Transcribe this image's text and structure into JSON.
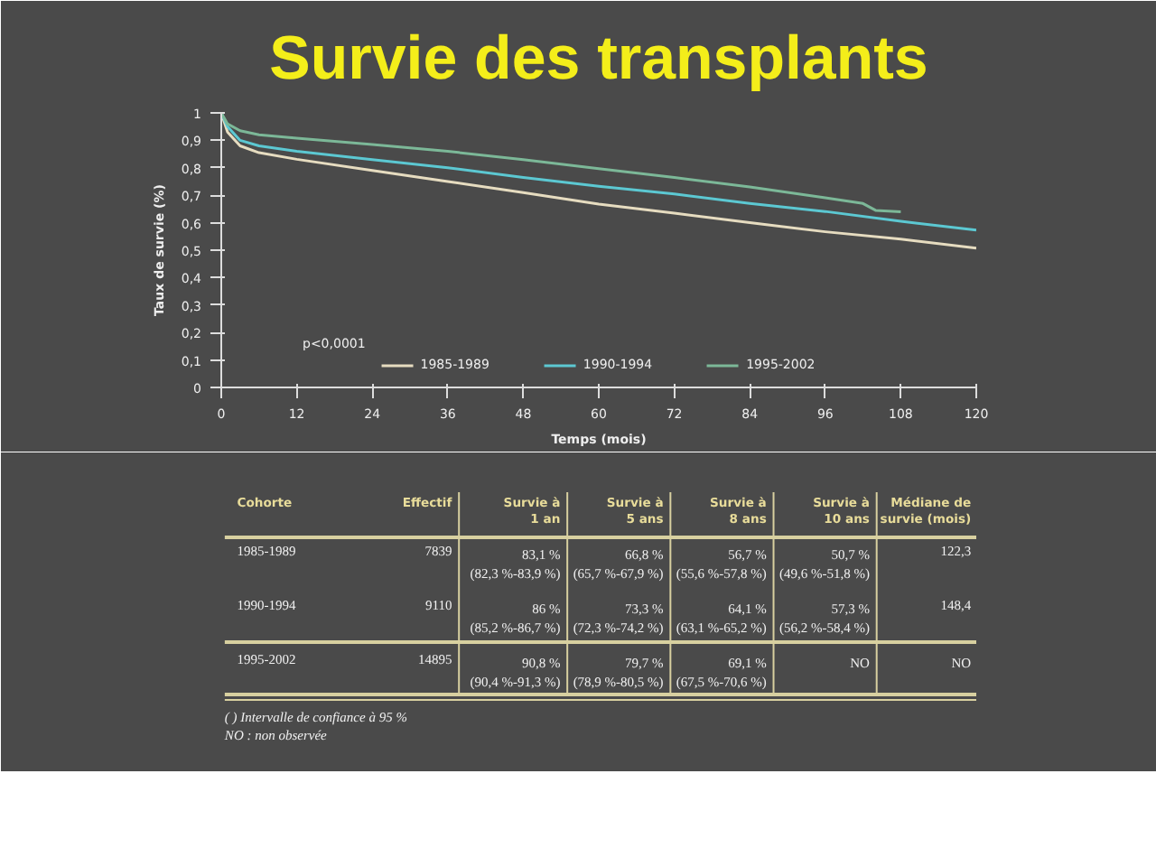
{
  "chart_data": [
    {
      "type": "line",
      "title": "Survie des transplants",
      "xlabel": "Temps (mois)",
      "ylabel": "Taux de survie (%)",
      "xlim": [
        0,
        120
      ],
      "xticks": [
        0,
        12,
        24,
        36,
        48,
        60,
        72,
        84,
        96,
        108,
        120
      ],
      "ylim": [
        0,
        1
      ],
      "yticks": [
        0,
        {
          "value": 0.1,
          "label": "0,1"
        },
        {
          "value": 0.2,
          "label": "0,2"
        },
        {
          "value": 0.3,
          "label": "0,3"
        },
        {
          "value": 0.4,
          "label": "0,4"
        },
        {
          "value": 0.5,
          "label": "0,5"
        },
        {
          "value": 0.6,
          "label": "0,6"
        },
        {
          "value": 0.7,
          "label": "0,7"
        },
        {
          "value": 0.8,
          "label": "0,8"
        },
        {
          "value": 0.9,
          "label": "0,9"
        },
        1
      ],
      "grid": false,
      "legend": "bottom",
      "marker": "none",
      "line_style": "solid",
      "annotations": [
        "p<0,0001"
      ],
      "series": [
        {
          "name": "1985-1989",
          "color": "#e6dcc0",
          "x": [
            0,
            1,
            3,
            6,
            12,
            24,
            36,
            48,
            60,
            72,
            84,
            96,
            108,
            120
          ],
          "values": [
            1,
            0.93,
            0.88,
            0.855,
            0.831,
            0.79,
            0.75,
            0.71,
            0.668,
            0.635,
            0.6,
            0.567,
            0.54,
            0.507
          ]
        },
        {
          "name": "1990-1994",
          "color": "#5cc8d2",
          "x": [
            0,
            1,
            3,
            6,
            12,
            24,
            36,
            48,
            60,
            72,
            84,
            96,
            108,
            120
          ],
          "values": [
            1,
            0.95,
            0.9,
            0.88,
            0.86,
            0.83,
            0.8,
            0.765,
            0.733,
            0.705,
            0.67,
            0.641,
            0.605,
            0.573
          ]
        },
        {
          "name": "1995-2002",
          "color": "#7cb898",
          "x": [
            0,
            1,
            3,
            6,
            12,
            24,
            36,
            48,
            60,
            72,
            84,
            96,
            102,
            104,
            108
          ],
          "values": [
            1,
            0.96,
            0.935,
            0.92,
            0.908,
            0.885,
            0.86,
            0.83,
            0.797,
            0.765,
            0.73,
            0.691,
            0.67,
            0.645,
            0.64
          ]
        }
      ]
    },
    {
      "type": "other",
      "categories": [
        "Cohorte",
        "Effectif",
        "Survie à\n1 an",
        "Survie à\n5 ans",
        "Survie à\n8 ans",
        "Survie à\n10 ans",
        "Médiane de\nsurvie (mois)"
      ],
      "y_categories": [
        "1985-1989",
        "1990-1994",
        "1995-2002"
      ],
      "cell_labels": [
        [
          "7839",
          "83,1 %\n(82,3 %-83,9 %)",
          "66,8 %\n(65,7 %-67,9 %)",
          "56,7 %\n(55,6 %-57,8 %)",
          "50,7 %\n(49,6 %-51,8 %)",
          "122,3"
        ],
        [
          "9110",
          "86 %\n(85,2 %-86,7 %)",
          "73,3 %\n(72,3 %-74,2 %)",
          "64,1 %\n(63,1 %-65,2 %)",
          "57,3 %\n(56,2 %-58,4 %)",
          "148,4"
        ],
        [
          "14895",
          "90,8 %\n(90,4 %-91,3 %)",
          "79,7 %\n(78,9 %-80,5 %)",
          "69,1 %\n(67,5 %-70,6 %)",
          "NO",
          "NO"
        ]
      ],
      "annotations": [
        "( ) Intervalle de confiance à 95 %",
        "NO : non observée"
      ]
    }
  ]
}
